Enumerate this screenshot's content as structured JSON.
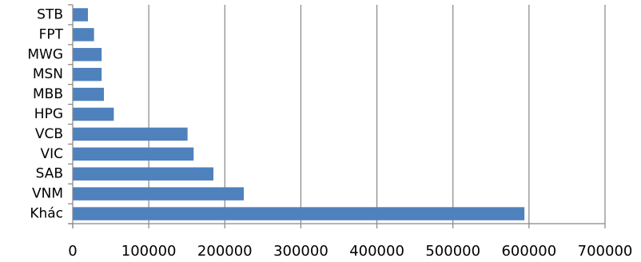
{
  "chart_data": {
    "type": "bar",
    "orientation": "horizontal",
    "categories": [
      "STB",
      "FPT",
      "MWG",
      "MSN",
      "MBB",
      "HPG",
      "VCB",
      "VIC",
      "SAB",
      "VNM",
      "Khác"
    ],
    "values": [
      20000,
      28000,
      38000,
      38000,
      41000,
      54000,
      151000,
      159000,
      185000,
      225000,
      594000
    ],
    "xlim": [
      0,
      700000
    ],
    "xticks": [
      0,
      100000,
      200000,
      300000,
      400000,
      500000,
      600000,
      700000
    ],
    "xtick_labels": [
      "0",
      "100000",
      "200000",
      "300000",
      "400000",
      "500000",
      "600000",
      "700000"
    ],
    "grid": "vertical",
    "legend": "none",
    "bar_color": "#4F81BD",
    "grid_color": "#868686"
  }
}
